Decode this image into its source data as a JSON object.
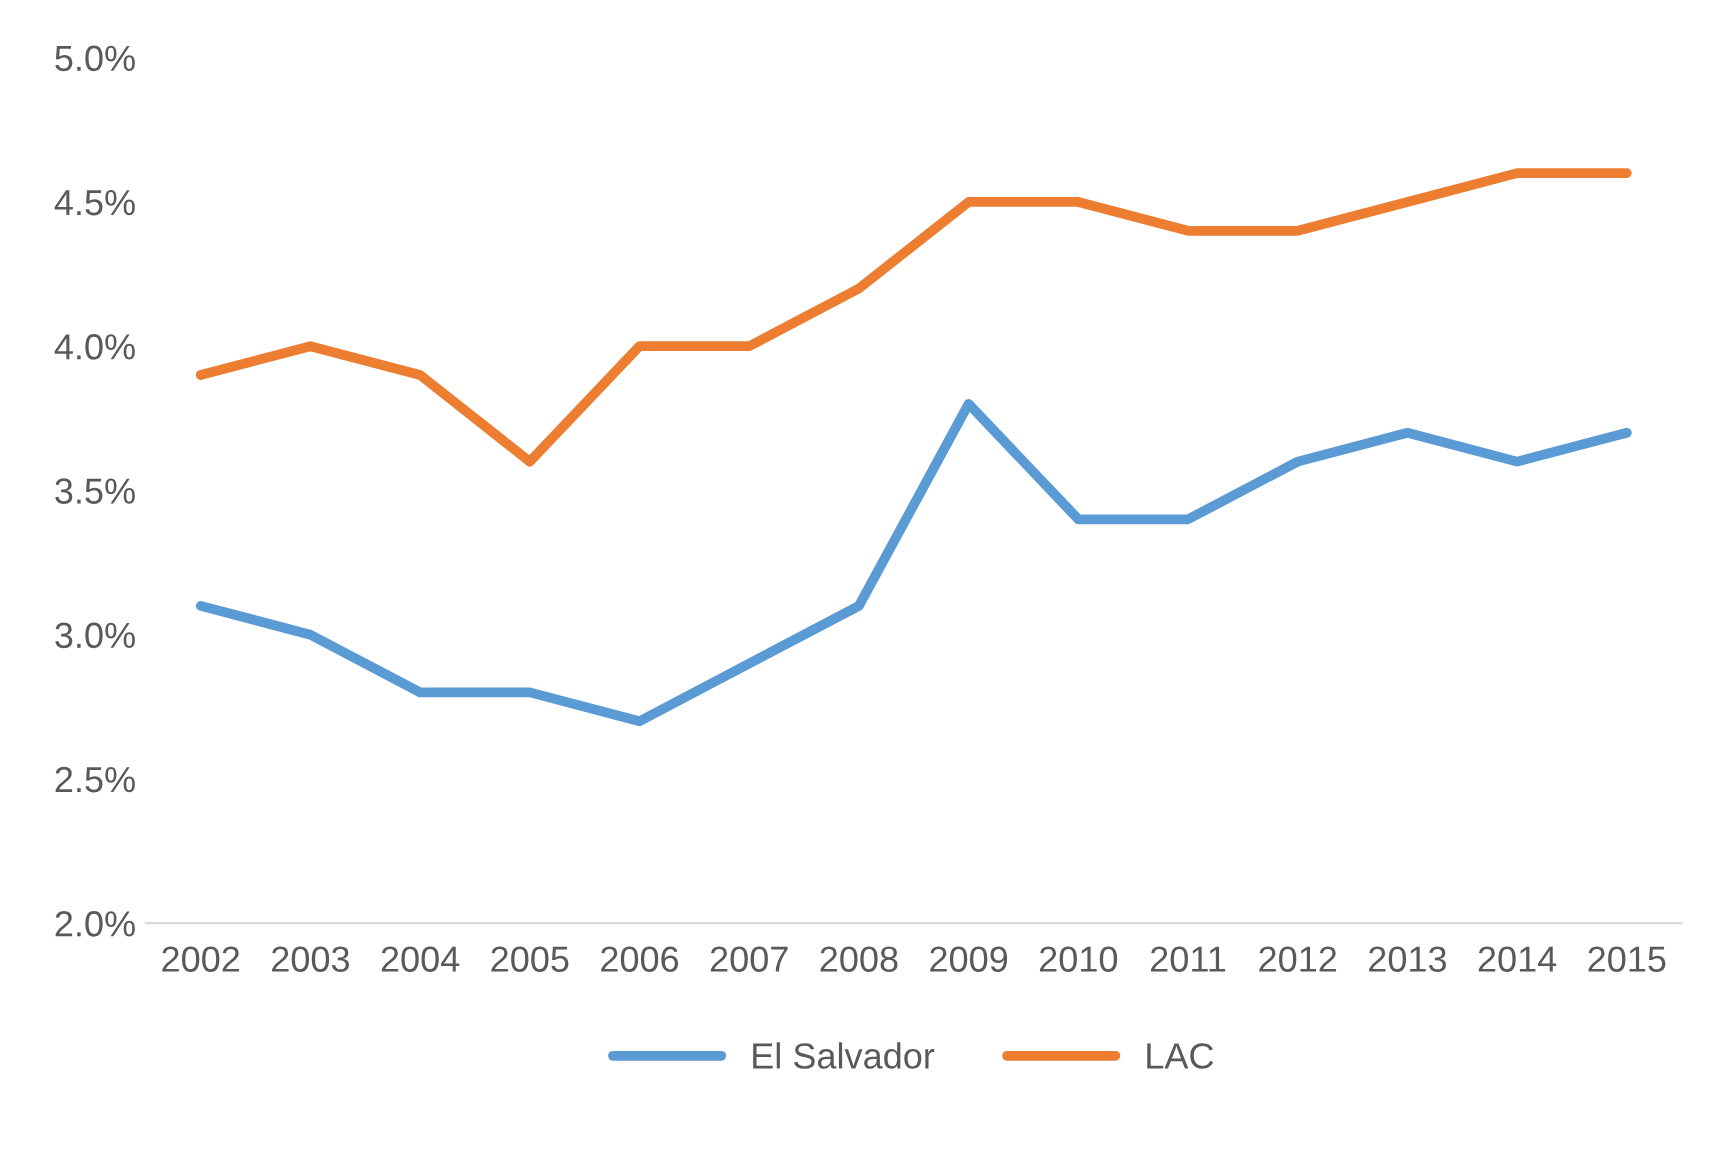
{
  "chart_data": {
    "type": "line",
    "categories": [
      "2002",
      "2003",
      "2004",
      "2005",
      "2006",
      "2007",
      "2008",
      "2009",
      "2010",
      "2011",
      "2012",
      "2013",
      "2014",
      "2015"
    ],
    "series": [
      {
        "name": "El Salvador",
        "color": "#5b9bd5",
        "values": [
          3.1,
          3.0,
          2.8,
          2.8,
          2.7,
          2.9,
          3.1,
          3.8,
          3.4,
          3.4,
          3.6,
          3.7,
          3.6,
          3.7
        ]
      },
      {
        "name": "LAC",
        "color": "#ed7d31",
        "values": [
          3.9,
          4.0,
          3.9,
          3.6,
          4.0,
          4.0,
          4.2,
          4.5,
          4.5,
          4.4,
          4.4,
          4.5,
          4.6,
          4.6
        ]
      }
    ],
    "ylim": [
      2.0,
      5.0
    ],
    "yticks": [
      {
        "value": 2.0,
        "label": "2.0%"
      },
      {
        "value": 2.5,
        "label": "2.5%"
      },
      {
        "value": 3.0,
        "label": "3.0%"
      },
      {
        "value": 3.5,
        "label": "3.5%"
      },
      {
        "value": 4.0,
        "label": "4.0%"
      },
      {
        "value": 4.5,
        "label": "4.5%"
      },
      {
        "value": 5.0,
        "label": "5.0%"
      }
    ],
    "grid": false,
    "legend": "bottom",
    "marker": "none",
    "line_style": "solid"
  }
}
